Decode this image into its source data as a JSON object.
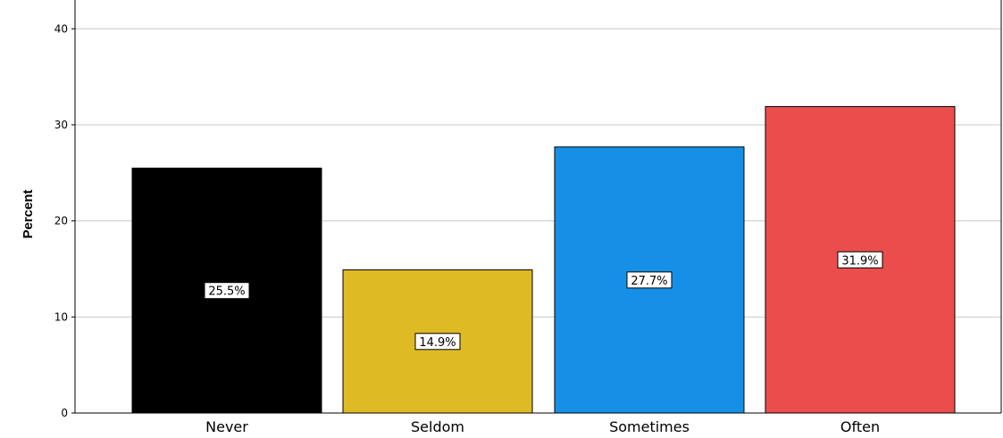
{
  "chart_data": {
    "type": "bar",
    "title": "",
    "xlabel": "",
    "ylabel": "Percent",
    "categories": [
      "Never",
      "Seldom",
      "Sometimes",
      "Often"
    ],
    "values": [
      25.5,
      14.9,
      27.7,
      31.9
    ],
    "data_labels": [
      "25.5%",
      "14.9%",
      "27.7%",
      "31.9%"
    ],
    "colors": [
      "#000000",
      "#deba24",
      "#1690e6",
      "#eb4d4d"
    ],
    "ylim": [
      0,
      43
    ],
    "yticks": [
      0,
      10,
      20,
      30,
      40
    ],
    "grid": true,
    "legend": "none"
  }
}
